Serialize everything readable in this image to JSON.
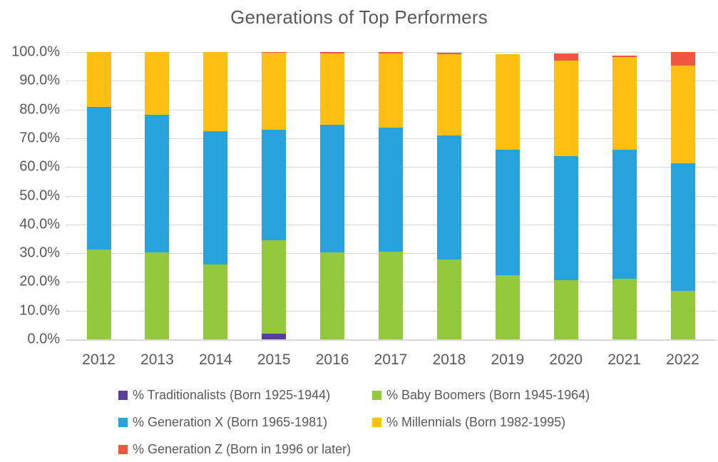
{
  "title": "Generations of Top Performers",
  "colors": {
    "traditionalists": "#5b3d9c",
    "baby_boomers": "#94c83d",
    "generation_x": "#29a3dc",
    "millennials": "#ffc013",
    "generation_z": "#f0563f",
    "grid": "#d9d9d9",
    "text": "#595959",
    "background": "#ffffff"
  },
  "chart_data": {
    "type": "bar",
    "stacked": true,
    "title": "Generations of Top Performers",
    "xlabel": "",
    "ylabel": "",
    "ylim": [
      0,
      100
    ],
    "grid": true,
    "legend_position": "bottom",
    "y_tick_labels": [
      "100.0%",
      "90.0%",
      "80.0%",
      "70.0%",
      "60.0%",
      "50.0%",
      "40.0%",
      "30.0%",
      "20.0%",
      "10.0%",
      "0.0%"
    ],
    "categories": [
      "2012",
      "2013",
      "2014",
      "2015",
      "2016",
      "2017",
      "2018",
      "2019",
      "2020",
      "2021",
      "2022"
    ],
    "series": [
      {
        "name": "% Traditionalists (Born 1925-1944)",
        "color": "#5b3d9c",
        "values": [
          0,
          0,
          0,
          2.0,
          0,
          0,
          0,
          0,
          0,
          0,
          0
        ]
      },
      {
        "name": "% Baby Boomers (Born 1945-1964)",
        "color": "#94c83d",
        "values": [
          31.3,
          30.2,
          26.0,
          32.6,
          30.3,
          30.6,
          27.8,
          22.4,
          20.7,
          21.2,
          17.0
        ]
      },
      {
        "name": "% Generation X (Born 1965-1981)",
        "color": "#29a3dc",
        "values": [
          49.5,
          47.9,
          46.4,
          38.3,
          44.4,
          43.0,
          43.1,
          43.7,
          43.0,
          44.9,
          44.4
        ]
      },
      {
        "name": "% Millennials (Born 1982-1995)",
        "color": "#ffc013",
        "values": [
          19.2,
          21.9,
          27.6,
          26.8,
          24.7,
          25.8,
          28.3,
          33.2,
          33.4,
          32.2,
          34.0
        ]
      },
      {
        "name": "% Generation Z (Born in 1996 or later)",
        "color": "#f0563f",
        "values": [
          0,
          0,
          0,
          0.3,
          0.5,
          0.5,
          0.5,
          0,
          2.3,
          0.4,
          4.6
        ]
      }
    ]
  }
}
